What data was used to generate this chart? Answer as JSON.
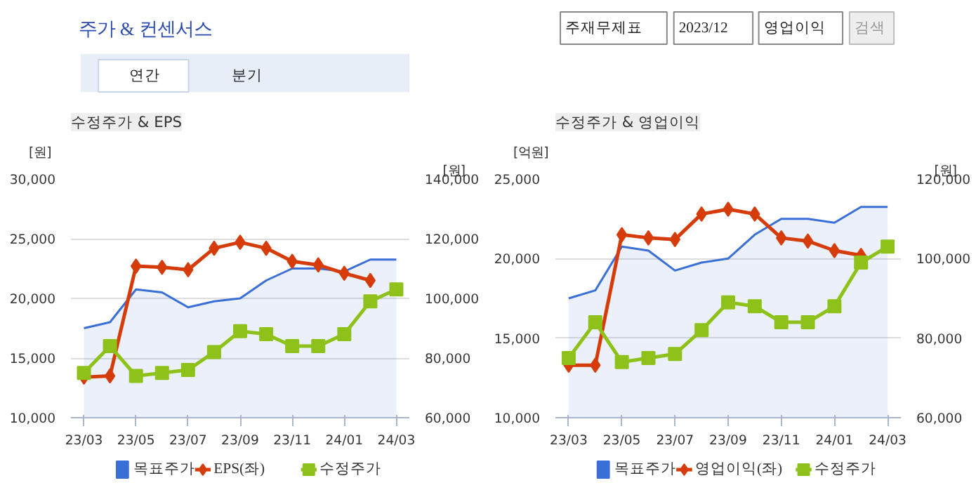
{
  "chart_data": [
    {
      "type": "other",
      "title": "주가 & 컨센서스",
      "annotations": [
        "주재무제표",
        "2023/12",
        "영업이익",
        "검색",
        "연간",
        "분기"
      ]
    },
    {
      "type": "line",
      "title": "수정주가 & EPS",
      "ylabel": "[원]",
      "y2label": "[원]",
      "categories": [
        "23/03",
        null,
        "23/05",
        null,
        "23/07",
        null,
        "23/09",
        null,
        "23/11",
        null,
        "24/01",
        null,
        "24/03"
      ],
      "ylim": [
        10000,
        30000
      ],
      "yticks": [
        {
          "value": 10000,
          "label": "10,000"
        },
        {
          "value": 15000,
          "label": "15,000"
        },
        {
          "value": 20000,
          "label": "20,000"
        },
        {
          "value": 25000,
          "label": "25,000"
        },
        {
          "value": 30000,
          "label": "30,000"
        }
      ],
      "y2lim": [
        60000,
        140000
      ],
      "y2ticks": [
        {
          "value": 60000,
          "label": "60,000"
        },
        {
          "value": 80000,
          "label": "80,000"
        },
        {
          "value": 100000,
          "label": "100,000"
        },
        {
          "value": 120000,
          "label": "120,000"
        },
        {
          "value": 140000,
          "label": "140,000"
        }
      ],
      "grid": "y",
      "legend": "bottom",
      "series": [
        {
          "name": "목표주가",
          "type": "area",
          "axis": "y2",
          "color": "#3a6fd8",
          "marker": "none",
          "values": [
            90000,
            92000,
            103000,
            102000,
            97000,
            99000,
            100000,
            106000,
            110000,
            110000,
            109000,
            113000,
            113000
          ]
        },
        {
          "name": "EPS(좌)",
          "type": "line",
          "color": "#d63c0a",
          "marker": "diamond",
          "values": [
            13400,
            13500,
            22700,
            22600,
            22400,
            24200,
            24700,
            24200,
            23100,
            22800,
            22100,
            21500,
            null
          ]
        },
        {
          "name": "수정주가",
          "type": "line",
          "axis": "y2",
          "color": "#8ec21a",
          "marker": "square",
          "values": [
            75000,
            84000,
            74000,
            75000,
            76000,
            82000,
            89000,
            88000,
            84000,
            84000,
            88000,
            99000,
            103000
          ]
        }
      ]
    },
    {
      "type": "line",
      "title": "수정주가 & 영업이익",
      "ylabel": "[억원]",
      "y2label": "[원]",
      "categories": [
        "23/03",
        null,
        "23/05",
        null,
        "23/07",
        null,
        "23/09",
        null,
        "23/11",
        null,
        "24/01",
        null,
        "24/03"
      ],
      "ylim": [
        10000,
        25000
      ],
      "yticks": [
        {
          "value": 10000,
          "label": "10,000"
        },
        {
          "value": 15000,
          "label": "15,000"
        },
        {
          "value": 20000,
          "label": "20,000"
        },
        {
          "value": 25000,
          "label": "25,000"
        }
      ],
      "y2lim": [
        60000,
        120000
      ],
      "y2ticks": [
        {
          "value": 60000,
          "label": "60,000"
        },
        {
          "value": 80000,
          "label": "80,000"
        },
        {
          "value": 100000,
          "label": "100,000"
        },
        {
          "value": 120000,
          "label": "120,000"
        }
      ],
      "grid": "y",
      "legend": "bottom",
      "series": [
        {
          "name": "목표주가",
          "type": "area",
          "axis": "y2",
          "color": "#3a6fd8",
          "marker": "none",
          "values": [
            90000,
            92000,
            103000,
            102000,
            97000,
            99000,
            100000,
            106000,
            110000,
            110000,
            109000,
            113000,
            113000
          ]
        },
        {
          "name": "영업이익(좌)",
          "type": "line",
          "color": "#d63c0a",
          "marker": "diamond",
          "values": [
            13300,
            13300,
            21500,
            21300,
            21200,
            22800,
            23100,
            22800,
            21300,
            21100,
            20500,
            20200,
            null
          ]
        },
        {
          "name": "수정주가",
          "type": "line",
          "axis": "y2",
          "color": "#8ec21a",
          "marker": "square",
          "values": [
            75000,
            84000,
            74000,
            75000,
            76000,
            82000,
            89000,
            88000,
            84000,
            84000,
            88000,
            99000,
            103000
          ]
        }
      ]
    }
  ]
}
